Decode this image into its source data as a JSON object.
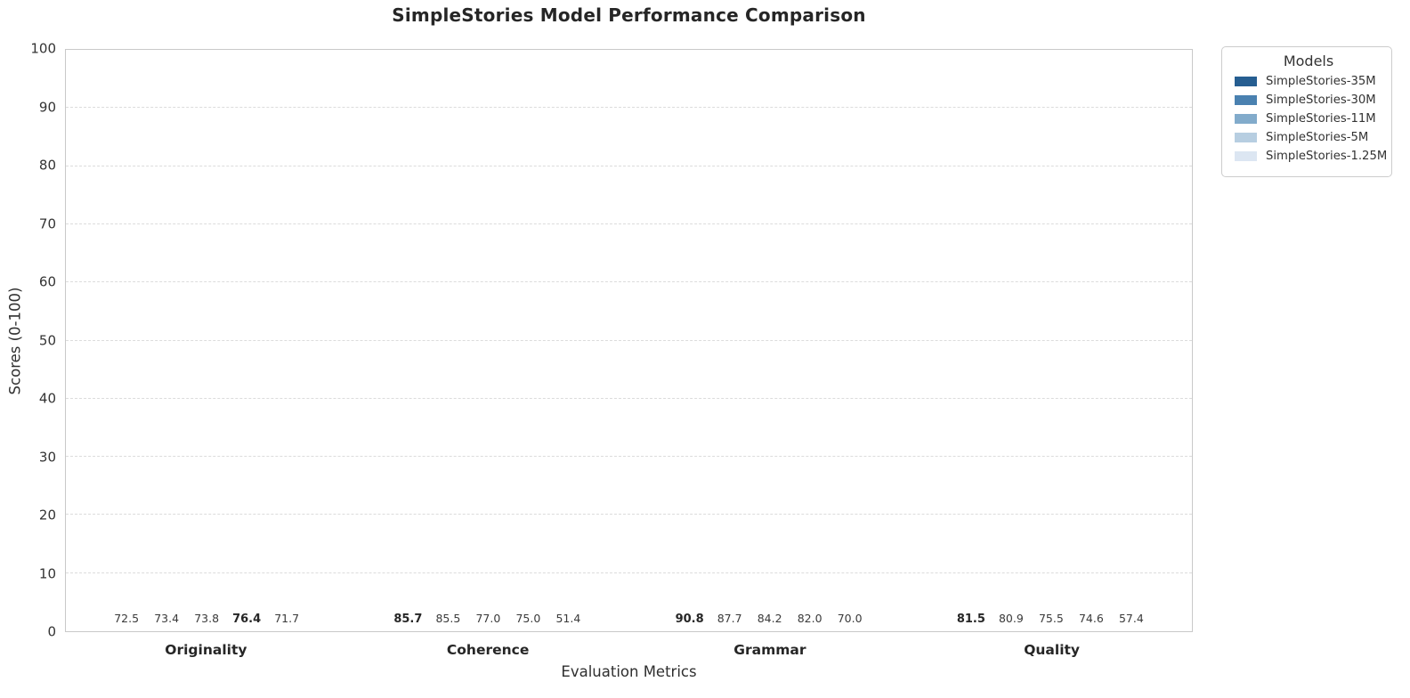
{
  "chart_data": {
    "type": "bar",
    "title": "SimpleStories Model Performance Comparison",
    "xlabel": "Evaluation Metrics",
    "ylabel": "Scores (0-100)",
    "ylim": [
      0,
      100
    ],
    "yticks": [
      0,
      10,
      20,
      30,
      40,
      50,
      60,
      70,
      80,
      90,
      100
    ],
    "grid": true,
    "grid_style": "dashed",
    "legend_title": "Models",
    "legend_position": "upper-right-outside",
    "bold_max_labels": true,
    "categories": [
      "Originality",
      "Coherence",
      "Grammar",
      "Quality"
    ],
    "series": [
      {
        "name": "SimpleStories-35M",
        "color": "#265e91",
        "values": [
          72.5,
          85.7,
          90.8,
          81.5
        ]
      },
      {
        "name": "SimpleStories-30M",
        "color": "#4a81b0",
        "values": [
          73.4,
          85.5,
          87.7,
          80.9
        ]
      },
      {
        "name": "SimpleStories-11M",
        "color": "#82abcb",
        "values": [
          73.8,
          77.0,
          84.2,
          75.5
        ]
      },
      {
        "name": "SimpleStories-5M",
        "color": "#b7cee1",
        "values": [
          76.4,
          75.0,
          82.0,
          74.6
        ]
      },
      {
        "name": "SimpleStories-1.25M",
        "color": "#dce6f2",
        "values": [
          71.7,
          51.4,
          70.0,
          57.4
        ]
      }
    ]
  }
}
